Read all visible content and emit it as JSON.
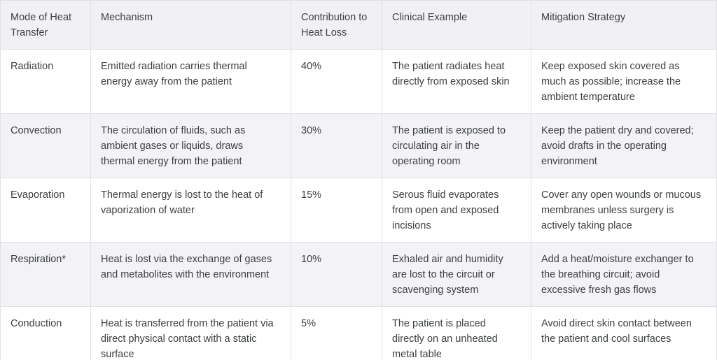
{
  "table": {
    "headers": [
      "Mode of Heat Transfer",
      "Mechanism",
      "Contribution to Heat Loss",
      "Clinical Example",
      "Mitigation Strategy"
    ],
    "rows": [
      [
        "Radiation",
        "Emitted radiation carries thermal energy away from the patient",
        "40%",
        "The patient radiates heat directly from exposed skin",
        "Keep exposed skin covered as much as possible; increase the ambient temperature"
      ],
      [
        "Convection",
        "The circulation of fluids, such as ambient gases or liquids, draws thermal energy from the patient",
        "30%",
        "The patient is exposed to circulating air in the operating room",
        "Keep the patient dry and covered; avoid drafts in the operating environment"
      ],
      [
        "Evaporation",
        "Thermal energy is lost to the heat of vaporization of water",
        "15%",
        "Serous fluid evaporates from open and exposed incisions",
        "Cover any open wounds or mucous membranes unless surgery is actively taking place"
      ],
      [
        "Respiration*",
        "Heat is lost via the exchange of gases and metabolites with the environment",
        "10%",
        "Exhaled air and humidity are lost to the circuit or scavenging system",
        "Add a heat/moisture exchanger to the breathing circuit; avoid excessive fresh gas flows"
      ],
      [
        "Conduction",
        "Heat is transferred from the patient via direct physical contact with a static surface",
        "5%",
        "The patient is placed directly on an unheated metal table",
        "Avoid direct skin contact between the patient and cool surfaces"
      ]
    ]
  },
  "colors": {
    "header_bg": "#f1f1f3",
    "stripe_bg": "#f3f3f5",
    "inner_border": "#e1e1e5",
    "outer_border": "#d2d2d7",
    "text": "#3c4043"
  }
}
